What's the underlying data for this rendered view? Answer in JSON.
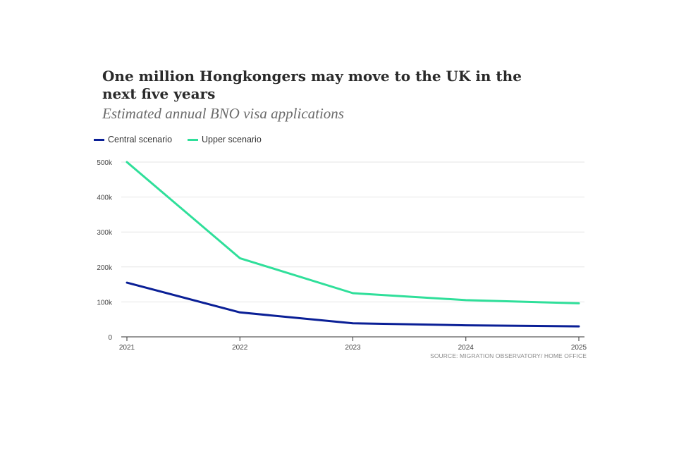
{
  "chart_data": {
    "type": "line",
    "title": "One million Hongkongers may move to the UK in the next five years",
    "subtitle": "Estimated annual BNO visa applications",
    "x": [
      "2021",
      "2022",
      "2023",
      "2024",
      "2025"
    ],
    "series": [
      {
        "name": "Central scenario",
        "color": "#0a1f96",
        "values": [
          155000,
          70000,
          39000,
          33000,
          30000
        ]
      },
      {
        "name": "Upper scenario",
        "color": "#2fdf9a",
        "values": [
          500000,
          225000,
          125000,
          105000,
          96000
        ]
      }
    ],
    "y_ticks": [
      {
        "value": 0,
        "label": "0"
      },
      {
        "value": 100000,
        "label": "100k"
      },
      {
        "value": 200000,
        "label": "200k"
      },
      {
        "value": 300000,
        "label": "300k"
      },
      {
        "value": 400000,
        "label": "400k"
      },
      {
        "value": 500000,
        "label": "500k"
      }
    ],
    "ylim": [
      0,
      500000
    ],
    "xlabel": "",
    "ylabel": "",
    "grid": true,
    "legend_position": "top-left",
    "source": "SOURCE: MIGRATION OBSERVATORY/ HOME OFFICE"
  }
}
